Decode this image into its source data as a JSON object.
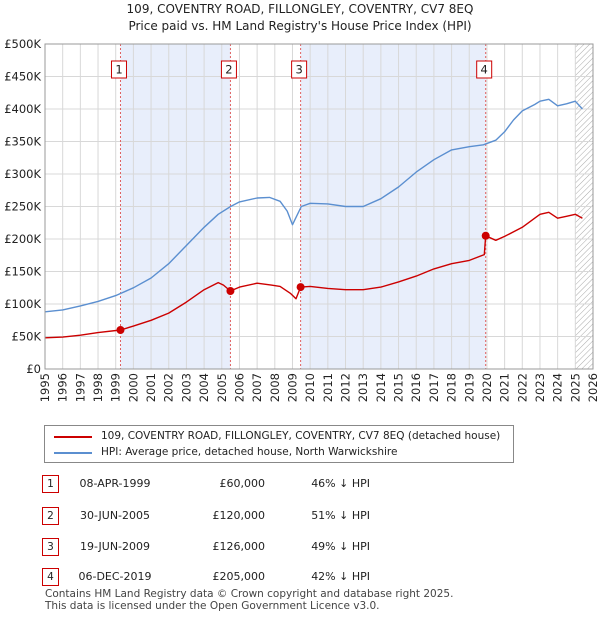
{
  "title_line1": "109, COVENTRY ROAD, FILLONGLEY, COVENTRY, CV7 8EQ",
  "title_line2": "Price paid vs. HM Land Registry's House Price Index (HPI)",
  "colors": {
    "price_paid": "#cc0000",
    "hpi": "#5b8fd0",
    "shade": "#e8eefb",
    "grid": "#d8d8d8"
  },
  "legend": {
    "price_paid": "109, COVENTRY ROAD, FILLONGLEY, COVENTRY, CV7 8EQ (detached house)",
    "hpi": "HPI: Average price, detached house, North Warwickshire"
  },
  "sales": [
    {
      "num": "1",
      "date": "08-APR-1999",
      "price": "£60,000",
      "hpi": "46% ↓ HPI"
    },
    {
      "num": "2",
      "date": "30-JUN-2005",
      "price": "£120,000",
      "hpi": "51% ↓ HPI"
    },
    {
      "num": "3",
      "date": "19-JUN-2009",
      "price": "£126,000",
      "hpi": "49% ↓ HPI"
    },
    {
      "num": "4",
      "date": "06-DEC-2019",
      "price": "£205,000",
      "hpi": "42% ↓ HPI"
    }
  ],
  "footer": {
    "line1": "Contains HM Land Registry data © Crown copyright and database right 2025.",
    "line2": "This data is licensed under the Open Government Licence v3.0."
  },
  "chart_data": {
    "type": "line",
    "title": "109, COVENTRY ROAD, FILLONGLEY, COVENTRY, CV7 8EQ — Price paid vs. HM Land Registry's House Price Index (HPI)",
    "xlabel": "",
    "ylabel": "",
    "xlim": [
      1995,
      2026
    ],
    "ylim": [
      0,
      500000
    ],
    "grid": true,
    "legend_position": "below",
    "x_ticks": [
      "1995",
      "1996",
      "1997",
      "1998",
      "1999",
      "2000",
      "2001",
      "2002",
      "2003",
      "2004",
      "2005",
      "2006",
      "2007",
      "2008",
      "2009",
      "2010",
      "2011",
      "2012",
      "2013",
      "2014",
      "2015",
      "2016",
      "2017",
      "2018",
      "2019",
      "2020",
      "2021",
      "2022",
      "2023",
      "2024",
      "2025",
      "2026"
    ],
    "y_ticks": [
      {
        "value": 0,
        "label": "£0"
      },
      {
        "value": 50000,
        "label": "£50K"
      },
      {
        "value": 100000,
        "label": "£100K"
      },
      {
        "value": 150000,
        "label": "£150K"
      },
      {
        "value": 200000,
        "label": "£200K"
      },
      {
        "value": 250000,
        "label": "£250K"
      },
      {
        "value": 300000,
        "label": "£300K"
      },
      {
        "value": 350000,
        "label": "£350K"
      },
      {
        "value": 400000,
        "label": "£400K"
      },
      {
        "value": 450000,
        "label": "£450K"
      },
      {
        "value": 500000,
        "label": "£500K"
      }
    ],
    "shaded_ranges": [
      [
        1999.27,
        2005.49
      ],
      [
        2009.46,
        2019.93
      ]
    ],
    "forecast_hatch_from": 2025.0,
    "sale_markers": [
      {
        "label": "1",
        "x": 1999.27,
        "y": 60000
      },
      {
        "label": "2",
        "x": 2005.49,
        "y": 120000
      },
      {
        "label": "3",
        "x": 2009.46,
        "y": 126000
      },
      {
        "label": "4",
        "x": 2019.93,
        "y": 205000
      }
    ],
    "series": [
      {
        "name": "109, COVENTRY ROAD, FILLONGLEY, COVENTRY, CV7 8EQ (detached house)",
        "color": "#cc0000",
        "x": [
          1995.0,
          1996.0,
          1997.0,
          1998.0,
          1999.27,
          2000.0,
          2001.0,
          2002.0,
          2003.0,
          2004.0,
          2004.8,
          2005.1,
          2005.49,
          2006.0,
          2007.0,
          2007.8,
          2008.3,
          2008.9,
          2009.2,
          2009.46,
          2010.0,
          2011.0,
          2012.0,
          2013.0,
          2014.0,
          2015.0,
          2016.0,
          2017.0,
          2018.0,
          2019.0,
          2019.85,
          2019.93,
          2020.5,
          2021.0,
          2022.0,
          2022.7,
          2023.0,
          2023.5,
          2024.0,
          2024.5,
          2025.0,
          2025.4
        ],
        "y": [
          48000,
          49000,
          52000,
          56000,
          60000,
          66000,
          75000,
          86000,
          103000,
          122000,
          133000,
          129000,
          120000,
          126000,
          132000,
          129000,
          127000,
          116000,
          108000,
          126000,
          127000,
          124000,
          122000,
          122000,
          126000,
          134000,
          143000,
          154000,
          162000,
          167000,
          176000,
          205000,
          198000,
          204000,
          218000,
          232000,
          238000,
          241000,
          232000,
          235000,
          238000,
          232000
        ]
      },
      {
        "name": "HPI: Average price, detached house, North Warwickshire",
        "color": "#5b8fd0",
        "x": [
          1995.0,
          1996.0,
          1997.0,
          1998.0,
          1999.0,
          2000.0,
          2001.0,
          2002.0,
          2003.0,
          2004.0,
          2004.8,
          2005.5,
          2006.0,
          2007.0,
          2007.7,
          2008.3,
          2008.7,
          2009.0,
          2009.5,
          2010.0,
          2011.0,
          2012.0,
          2013.0,
          2014.0,
          2015.0,
          2016.0,
          2017.0,
          2018.0,
          2019.0,
          2019.8,
          2020.5,
          2021.0,
          2021.5,
          2022.0,
          2022.7,
          2023.0,
          2023.5,
          2024.0,
          2024.5,
          2025.0,
          2025.4
        ],
        "y": [
          88000,
          91000,
          97000,
          104000,
          113000,
          125000,
          140000,
          162000,
          190000,
          218000,
          238000,
          250000,
          257000,
          263000,
          264000,
          258000,
          243000,
          222000,
          250000,
          255000,
          254000,
          250000,
          250000,
          262000,
          280000,
          303000,
          322000,
          337000,
          342000,
          345000,
          352000,
          365000,
          383000,
          397000,
          407000,
          412000,
          415000,
          405000,
          408000,
          412000,
          400000
        ]
      }
    ]
  }
}
